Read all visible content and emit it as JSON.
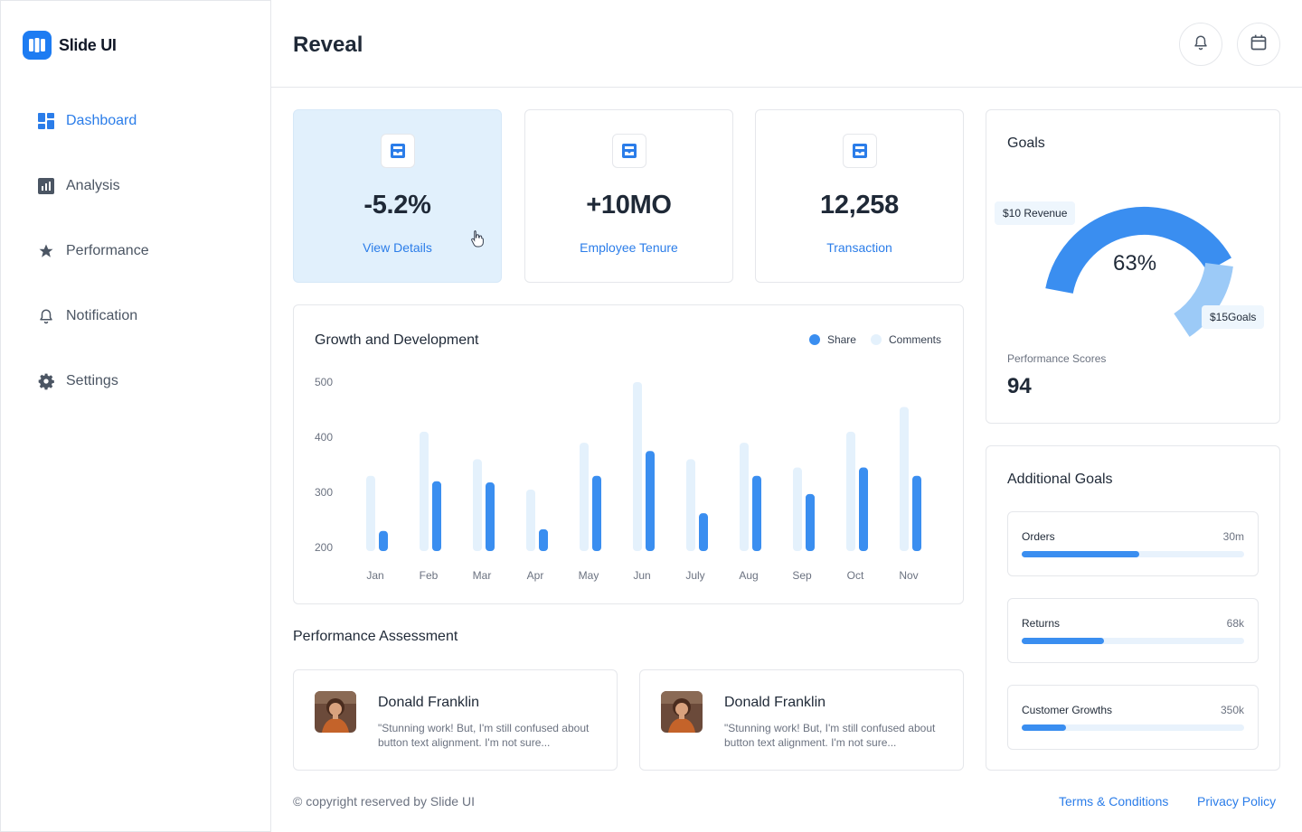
{
  "app": {
    "name": "Slide UI"
  },
  "sidebar": {
    "items": [
      {
        "label": "Dashboard",
        "icon": "dashboard-icon",
        "active": true
      },
      {
        "label": "Analysis",
        "icon": "analysis-icon",
        "active": false
      },
      {
        "label": "Performance",
        "icon": "star-icon",
        "active": false
      },
      {
        "label": "Notification",
        "icon": "bell-icon",
        "active": false
      },
      {
        "label": "Settings",
        "icon": "gear-icon",
        "active": false
      }
    ]
  },
  "header": {
    "title": "Reveal",
    "icons": [
      "bell-icon",
      "calendar-icon"
    ]
  },
  "stats": [
    {
      "value": "-5.2%",
      "link": "View Details",
      "icon": "inbox-icon"
    },
    {
      "value": "+10MO",
      "link": "Employee Tenure",
      "icon": "inbox-icon"
    },
    {
      "value": "12,258",
      "link": "Transaction",
      "icon": "inbox-icon"
    }
  ],
  "chart_data": {
    "type": "bar",
    "title": "Growth and Development",
    "categories": [
      "Jan",
      "Feb",
      "Mar",
      "Apr",
      "May",
      "Jun",
      "July",
      "Aug",
      "Sep",
      "Oct",
      "Nov"
    ],
    "series": [
      {
        "name": "Comments",
        "color": "#e4f1fc",
        "values": [
          330,
          410,
          360,
          305,
          390,
          500,
          360,
          390,
          345,
          410,
          455
        ]
      },
      {
        "name": "Share",
        "color": "#3a8ef0",
        "values": [
          230,
          320,
          318,
          233,
          330,
          375,
          262,
          330,
          297,
          345,
          330
        ]
      }
    ],
    "ylim": [
      200,
      500
    ],
    "yticks": [
      "500",
      "400",
      "300",
      "200"
    ],
    "legend": "top-right",
    "grid": false
  },
  "assessment": {
    "title": "Performance Assessment",
    "reviews": [
      {
        "name": "Donald Franklin",
        "text": "\"Stunning work! But, I'm still confused about button text alignment. I'm not sure..."
      },
      {
        "name": "Donald Franklin",
        "text": "\"Stunning work! But, I'm still confused about button text alignment. I'm not sure..."
      }
    ]
  },
  "goals": {
    "title": "Goals",
    "percent": "63%",
    "percent_value": 63,
    "label_revenue": "$10 Revenue",
    "label_goals": "$15Goals",
    "score_label": "Performance Scores",
    "score_value": "94"
  },
  "additional_goals": {
    "title": "Additional Goals",
    "items": [
      {
        "label": "Orders",
        "value": "30m",
        "progress": 0.53
      },
      {
        "label": "Returns",
        "value": "68k",
        "progress": 0.37
      },
      {
        "label": "Customer Growths",
        "value": "350k",
        "progress": 0.2
      }
    ]
  },
  "footer": {
    "copyright": "© copyright reserved by Slide UI",
    "terms": "Terms & Conditions",
    "privacy": "Privacy Policy"
  },
  "colors": {
    "accent": "#2b7de9",
    "bar_primary": "#3a8ef0",
    "bar_secondary": "#e4f1fc",
    "highlight_card": "#e1f0fc"
  }
}
